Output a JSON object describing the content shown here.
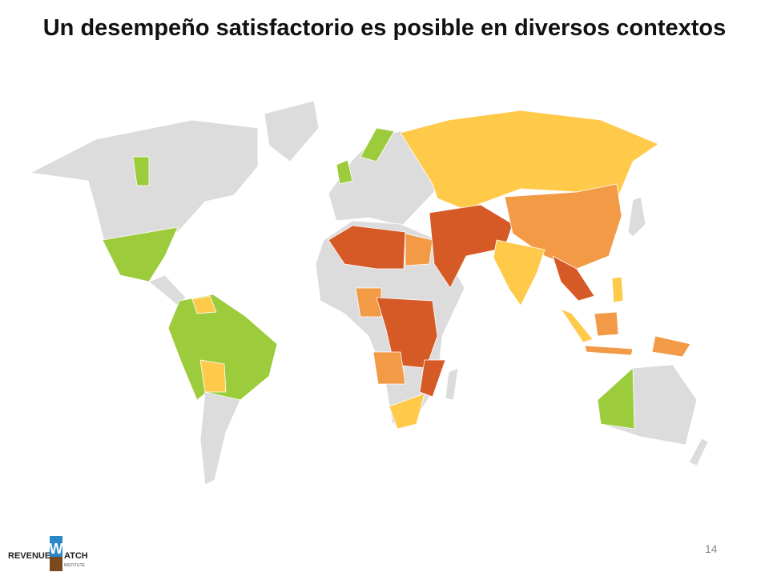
{
  "title": "Un desempeño satisfactorio es posible en diversos contextos",
  "page_number": "14",
  "logo": {
    "left": "REVENUE",
    "mark": "W",
    "right": "ATCH",
    "sub": "INSTITUTE"
  }
}
